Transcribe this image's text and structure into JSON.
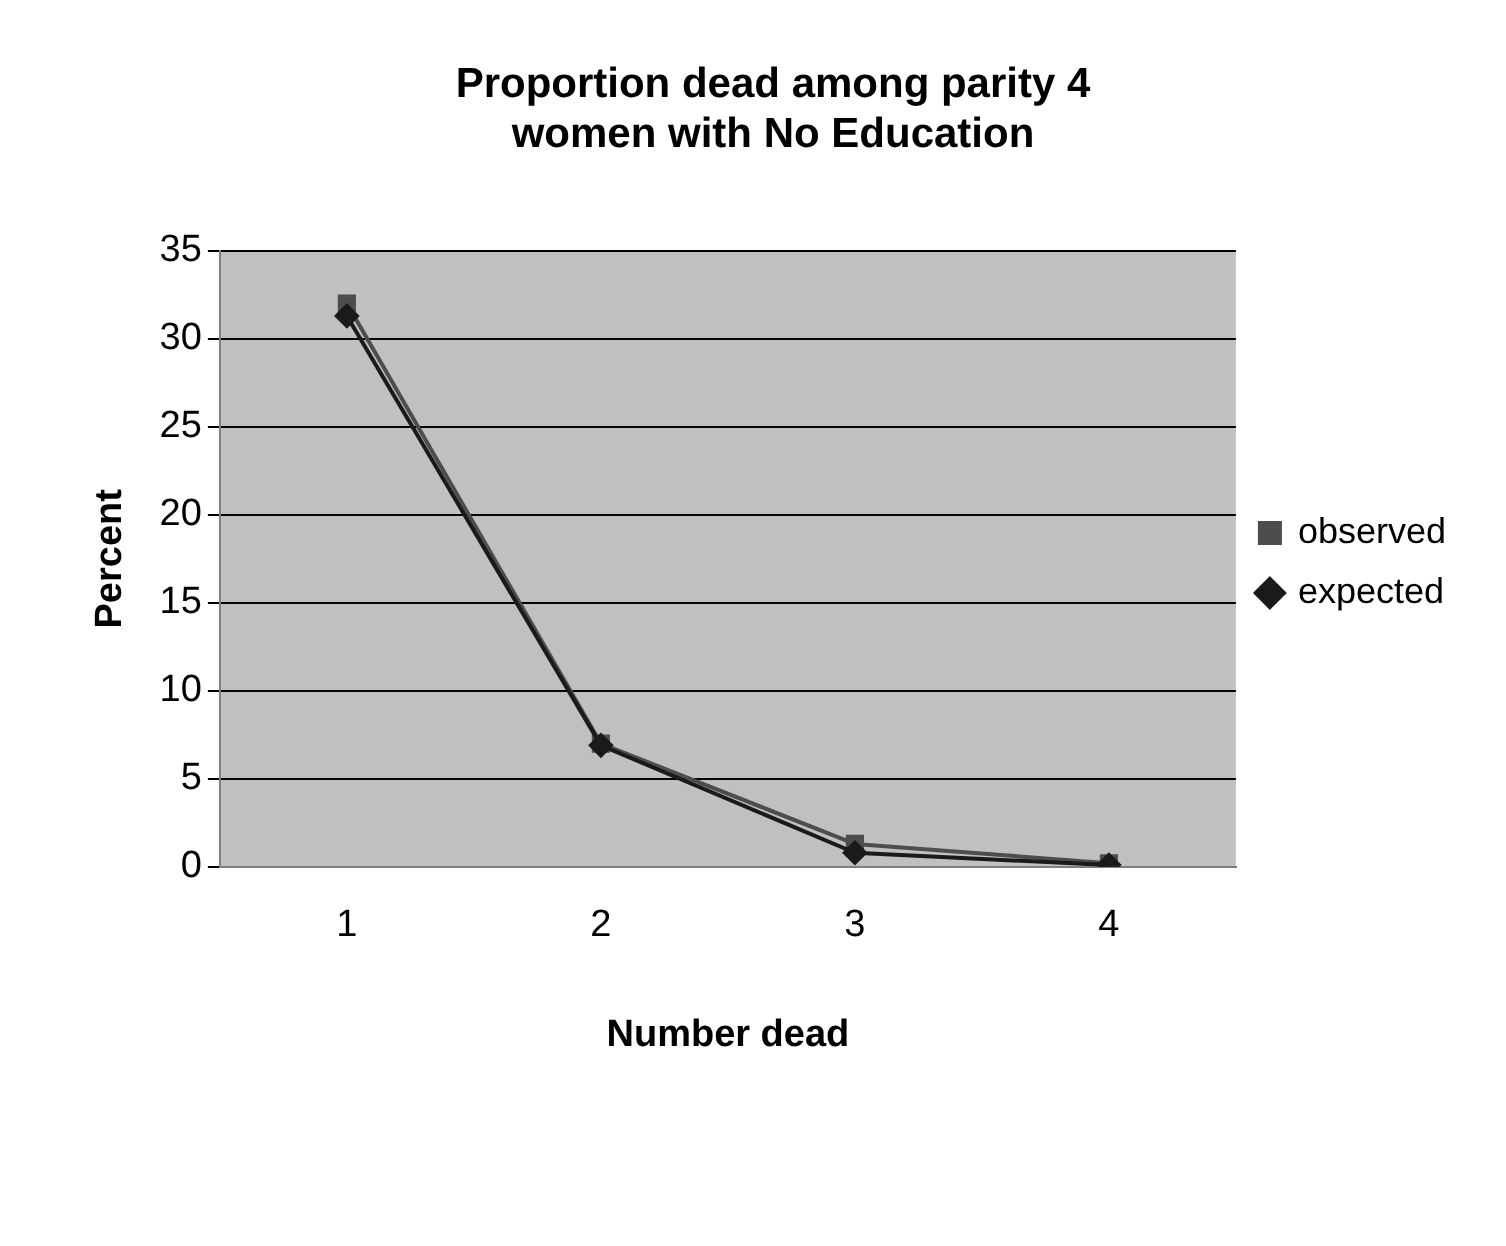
{
  "chart_data": {
    "type": "line",
    "title": "Proportion dead among parity 4 women with No Education",
    "xlabel": "Number dead",
    "ylabel": "Percent",
    "categories": [
      "1",
      "2",
      "3",
      "4"
    ],
    "series": [
      {
        "name": "observed",
        "color": "#4d4d4d",
        "marker": "square",
        "values": [
          32,
          7,
          1.3,
          0.2
        ]
      },
      {
        "name": "expected",
        "color": "#1a1a1a",
        "marker": "diamond",
        "values": [
          31.3,
          6.9,
          0.8,
          0.1
        ]
      }
    ],
    "ylim": [
      0,
      35
    ],
    "yticks": [
      0,
      5,
      10,
      15,
      20,
      25,
      30,
      35
    ],
    "grid": "y",
    "legend": "right",
    "line_style": "solid"
  }
}
